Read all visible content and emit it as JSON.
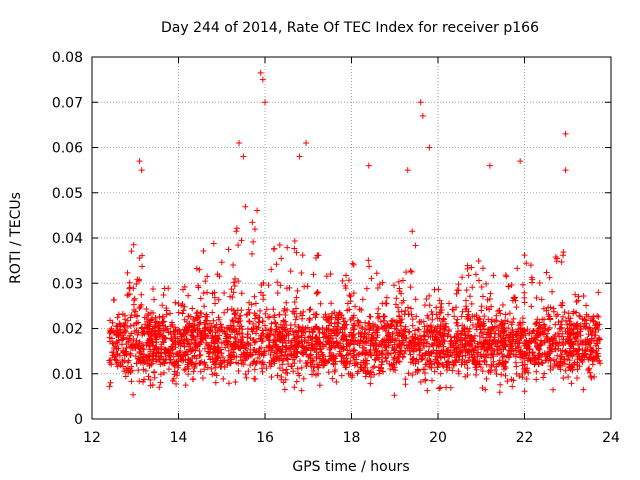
{
  "chart_data": {
    "type": "scatter",
    "title": "Day 244 of 2014, Rate Of TEC Index for receiver p166",
    "xlabel": "GPS time / hours",
    "ylabel": "ROTI / TECUs",
    "xlim": [
      12,
      24
    ],
    "ylim": [
      0,
      0.08
    ],
    "x_ticks": [
      12,
      14,
      16,
      18,
      20,
      22,
      24
    ],
    "x_tick_labels": [
      "12",
      "14",
      "16",
      "18",
      "20",
      "22",
      "24"
    ],
    "y_ticks": [
      0,
      0.01,
      0.02,
      0.03,
      0.04,
      0.05,
      0.06,
      0.07,
      0.08
    ],
    "y_tick_labels": [
      "0",
      "0.01",
      "0.02",
      "0.03",
      "0.04",
      "0.05",
      "0.06",
      "0.07",
      "0.08"
    ],
    "grid": true,
    "marker": "+",
    "marker_color": "#ff0000",
    "x_range_observed": [
      12.4,
      23.75
    ],
    "baseline_band": [
      0.005,
      0.025
    ],
    "notable_points": [
      {
        "x": 13.1,
        "y": 0.057
      },
      {
        "x": 13.15,
        "y": 0.055
      },
      {
        "x": 15.4,
        "y": 0.061
      },
      {
        "x": 15.5,
        "y": 0.058
      },
      {
        "x": 15.9,
        "y": 0.0765
      },
      {
        "x": 15.95,
        "y": 0.075
      },
      {
        "x": 16.0,
        "y": 0.07
      },
      {
        "x": 16.95,
        "y": 0.061
      },
      {
        "x": 16.8,
        "y": 0.058
      },
      {
        "x": 18.4,
        "y": 0.056
      },
      {
        "x": 19.3,
        "y": 0.055
      },
      {
        "x": 19.6,
        "y": 0.07
      },
      {
        "x": 19.65,
        "y": 0.067
      },
      {
        "x": 19.8,
        "y": 0.06
      },
      {
        "x": 21.2,
        "y": 0.056
      },
      {
        "x": 21.9,
        "y": 0.057
      },
      {
        "x": 22.95,
        "y": 0.063
      },
      {
        "x": 22.95,
        "y": 0.055
      }
    ]
  }
}
